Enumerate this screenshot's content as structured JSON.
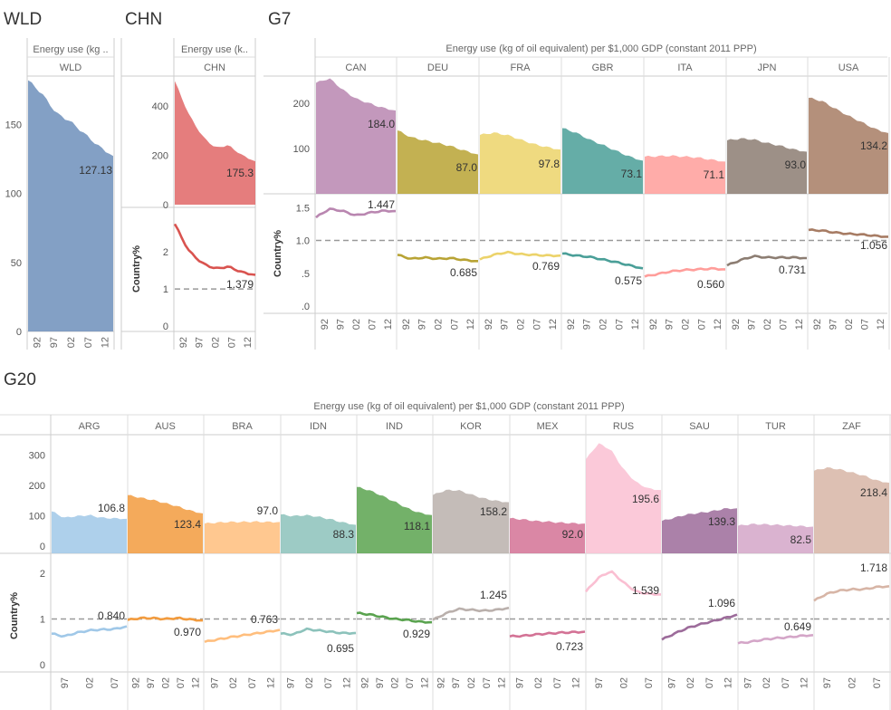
{
  "sections": {
    "wld": {
      "title": "WLD",
      "header": "Energy use (kg ..",
      "country": "WLD",
      "label": "127.13"
    },
    "chn": {
      "title": "CHN",
      "header": "Energy use (k..",
      "country": "CHN",
      "ylabel": "Country%",
      "label_top": "175.3",
      "label_bottom": "1.379"
    },
    "g7": {
      "title": "G7",
      "header": "Energy use (kg of oil equivalent) per $1,000 GDP (constant 2011 PPP)",
      "ylabel": "Country%"
    },
    "g20": {
      "title": "G20",
      "header": "Energy use (kg of oil equivalent) per $1,000 GDP (constant 2011 PPP)",
      "ylabel": "Country%"
    }
  },
  "axes": {
    "wld_y_ticks": [
      "0",
      "50",
      "100",
      "150"
    ],
    "chn_top_ticks": [
      "0",
      "200",
      "400"
    ],
    "chn_bottom_ticks": [
      "0",
      "1",
      "2"
    ],
    "g7_top_ticks": [
      "100",
      "200"
    ],
    "g7_bottom_ticks": [
      ".0",
      ".5",
      "1.0",
      "1.5"
    ],
    "g20_top_ticks": [
      "0",
      "100",
      "200",
      "300"
    ],
    "g20_bottom_ticks": [
      "0",
      "1",
      "2"
    ],
    "x_ticks_5": [
      "92",
      "97",
      "02",
      "07",
      "12"
    ],
    "x_ticks_4": [
      "97",
      "02",
      "07",
      "12"
    ],
    "x_ticks_3": [
      "97",
      "02",
      "07"
    ]
  },
  "colors": {
    "WLD": "#6d8fbb",
    "CHN": "#e06666",
    "CAN": "#b986b0",
    "DEU": "#b8a334",
    "FRA": "#ecd36a",
    "GBR": "#4a9f98",
    "ITA": "#ff9d9a",
    "JPN": "#8c7d72",
    "USA": "#a77c64",
    "ARG": "#a0c8e8",
    "AUS": "#f29b3e",
    "BRA": "#ffbe7d",
    "IDN": "#8cc2bb",
    "IND": "#5aa34f",
    "KOR": "#bab0ac",
    "MEX": "#d37295",
    "RUS": "#fabfd2",
    "SAU": "#9c6b9a",
    "TUR": "#d4a6c8",
    "ZAF": "#d7b5a6",
    "reference_line": "#999999"
  },
  "chart_data": [
    {
      "type": "area",
      "title": "WLD",
      "ylabel": "Energy use (kg ..",
      "xlabel": "",
      "ylim": [
        0,
        185
      ],
      "series": [
        {
          "name": "WLD",
          "x": [
            1990,
            1994,
            1998,
            2002,
            2006,
            2010,
            2014
          ],
          "values": [
            182,
            172,
            158,
            152,
            143,
            134,
            127.13
          ]
        }
      ]
    },
    {
      "type": "area",
      "title": "CHN",
      "ylabel": "Energy use (k..",
      "ylim": [
        0,
        520
      ],
      "series": [
        {
          "name": "CHN",
          "x": [
            1990,
            1994,
            1998,
            2002,
            2006,
            2010,
            2014
          ],
          "values": [
            500,
            370,
            280,
            230,
            240,
            200,
            175.3
          ]
        }
      ]
    },
    {
      "type": "line",
      "title": "CHN",
      "ylabel": "Country%",
      "ylim": [
        0,
        3.2
      ],
      "reference": 1.0,
      "series": [
        {
          "name": "CHN",
          "x": [
            1990,
            1994,
            1998,
            2002,
            2006,
            2010,
            2014
          ],
          "values": [
            2.75,
            2.05,
            1.7,
            1.55,
            1.6,
            1.45,
            1.379
          ]
        }
      ]
    },
    {
      "type": "area",
      "title": "G7",
      "ylabel": "Energy use (kg of oil equivalent) per $1,000 GDP (constant 2011 PPP)",
      "ylim": [
        0,
        260
      ],
      "x": [
        1990,
        1994,
        1998,
        2002,
        2006,
        2010,
        2014
      ],
      "series": [
        {
          "name": "CAN",
          "values": [
            245,
            255,
            230,
            210,
            200,
            190,
            184.0
          ],
          "label": "184.0"
        },
        {
          "name": "DEU",
          "values": [
            140,
            125,
            118,
            112,
            105,
            95,
            87.0
          ],
          "label": "87.0"
        },
        {
          "name": "FRA",
          "values": [
            130,
            135,
            130,
            120,
            110,
            103,
            97.8
          ],
          "label": "97.8"
        },
        {
          "name": "GBR",
          "values": [
            145,
            135,
            120,
            108,
            95,
            82,
            73.1
          ],
          "label": "73.1"
        },
        {
          "name": "ITA",
          "values": [
            82,
            83,
            84,
            82,
            80,
            75,
            71.1
          ],
          "label": "71.1"
        },
        {
          "name": "JPN",
          "values": [
            118,
            122,
            120,
            112,
            106,
            98,
            93.0
          ],
          "label": "93.0"
        },
        {
          "name": "USA",
          "values": [
            212,
            205,
            188,
            172,
            158,
            143,
            134.2
          ],
          "label": "134.2"
        }
      ]
    },
    {
      "type": "line",
      "title": "G7",
      "ylabel": "Country%",
      "ylim": [
        0,
        1.6
      ],
      "reference": 1.0,
      "x": [
        1990,
        1994,
        1998,
        2002,
        2006,
        2010,
        2014
      ],
      "series": [
        {
          "name": "CAN",
          "values": [
            1.35,
            1.48,
            1.45,
            1.38,
            1.42,
            1.45,
            1.447
          ],
          "label": "1.447"
        },
        {
          "name": "DEU",
          "values": [
            0.78,
            0.72,
            0.74,
            0.72,
            0.73,
            0.7,
            0.685
          ],
          "label": "0.685"
        },
        {
          "name": "FRA",
          "values": [
            0.71,
            0.78,
            0.82,
            0.79,
            0.78,
            0.77,
            0.769
          ],
          "label": "0.769"
        },
        {
          "name": "GBR",
          "values": [
            0.8,
            0.77,
            0.75,
            0.71,
            0.67,
            0.62,
            0.575
          ],
          "label": "0.575"
        },
        {
          "name": "ITA",
          "values": [
            0.45,
            0.49,
            0.53,
            0.55,
            0.56,
            0.57,
            0.56
          ],
          "label": "0.560"
        },
        {
          "name": "JPN",
          "values": [
            0.62,
            0.7,
            0.76,
            0.74,
            0.74,
            0.74,
            0.731
          ],
          "label": "0.731"
        },
        {
          "name": "USA",
          "values": [
            1.16,
            1.15,
            1.12,
            1.1,
            1.09,
            1.07,
            1.056
          ],
          "label": "1.056"
        }
      ]
    },
    {
      "type": "area",
      "title": "G20",
      "ylabel": "Energy use (kg of oil equivalent) per $1,000 GDP (constant 2011 PPP)",
      "ylim": [
        0,
        350
      ],
      "x": [
        1990,
        1994,
        1998,
        2002,
        2006,
        2010,
        2014
      ],
      "series": [
        {
          "name": "ARG",
          "values": [
            130,
            110,
            115,
            118,
            110,
            108,
            106.8
          ],
          "label": "106.8"
        },
        {
          "name": "AUS",
          "values": [
            180,
            172,
            165,
            155,
            145,
            132,
            123.4
          ],
          "label": "123.4"
        },
        {
          "name": "BRA",
          "values": [
            92,
            95,
            97,
            97,
            98,
            97,
            97.0
          ],
          "label": "97.0"
        },
        {
          "name": "IDN",
          "values": [
            120,
            115,
            118,
            113,
            105,
            95,
            88.3
          ],
          "label": "88.3"
        },
        {
          "name": "IND",
          "values": [
            205,
            195,
            178,
            160,
            140,
            125,
            118.1
          ],
          "label": "118.1"
        },
        {
          "name": "KOR",
          "values": [
            180,
            195,
            195,
            182,
            170,
            162,
            158.2
          ],
          "label": "158.2"
        },
        {
          "name": "MEX",
          "values": [
            108,
            105,
            100,
            98,
            95,
            93,
            92.0
          ],
          "label": "92.0"
        },
        {
          "name": "RUS",
          "values": [
            290,
            340,
            320,
            260,
            220,
            200,
            195.6
          ],
          "label": "195.6"
        },
        {
          "name": "SAU",
          "values": [
            100,
            110,
            120,
            125,
            130,
            138,
            139.3
          ],
          "label": "139.3"
        },
        {
          "name": "TUR",
          "values": [
            85,
            90,
            90,
            88,
            86,
            84,
            82.5
          ],
          "label": "82.5"
        },
        {
          "name": "ZAF",
          "values": [
            255,
            265,
            260,
            250,
            240,
            225,
            218.4
          ],
          "label": "218.4"
        }
      ]
    },
    {
      "type": "line",
      "title": "G20",
      "ylabel": "Country%",
      "ylim": [
        0,
        2.2
      ],
      "reference": 1.0,
      "x": [
        1990,
        1994,
        1998,
        2002,
        2006,
        2010,
        2014
      ],
      "series": [
        {
          "name": "ARG",
          "values": [
            0.68,
            0.62,
            0.7,
            0.75,
            0.77,
            0.78,
            0.84
          ],
          "label": "0.840"
        },
        {
          "name": "AUS",
          "values": [
            0.98,
            1.02,
            1.02,
            1.0,
            1.02,
            0.99,
            0.97
          ],
          "label": "0.970"
        },
        {
          "name": "BRA",
          "values": [
            0.5,
            0.55,
            0.6,
            0.64,
            0.68,
            0.72,
            0.763
          ],
          "label": "0.763"
        },
        {
          "name": "IDN",
          "values": [
            0.68,
            0.66,
            0.78,
            0.75,
            0.72,
            0.69,
            0.695
          ],
          "label": "0.695"
        },
        {
          "name": "IND",
          "values": [
            1.13,
            1.1,
            1.05,
            1.0,
            0.98,
            0.94,
            0.929
          ],
          "label": "0.929"
        },
        {
          "name": "KOR",
          "values": [
            0.98,
            1.12,
            1.22,
            1.2,
            1.18,
            1.2,
            1.245
          ],
          "label": "1.245"
        },
        {
          "name": "MEX",
          "values": [
            0.62,
            0.63,
            0.66,
            0.68,
            0.7,
            0.71,
            0.723
          ],
          "label": "0.723"
        },
        {
          "name": "RUS",
          "values": [
            1.6,
            1.9,
            2.05,
            1.8,
            1.6,
            1.55,
            1.539
          ],
          "label": "1.539"
        },
        {
          "name": "SAU",
          "values": [
            0.55,
            0.68,
            0.8,
            0.88,
            0.95,
            1.02,
            1.096
          ],
          "label": "1.096"
        },
        {
          "name": "TUR",
          "values": [
            0.47,
            0.5,
            0.55,
            0.58,
            0.6,
            0.63,
            0.649
          ],
          "label": "0.649"
        },
        {
          "name": "ZAF",
          "values": [
            1.4,
            1.55,
            1.62,
            1.65,
            1.65,
            1.7,
            1.718
          ],
          "label": "1.718"
        }
      ]
    }
  ]
}
